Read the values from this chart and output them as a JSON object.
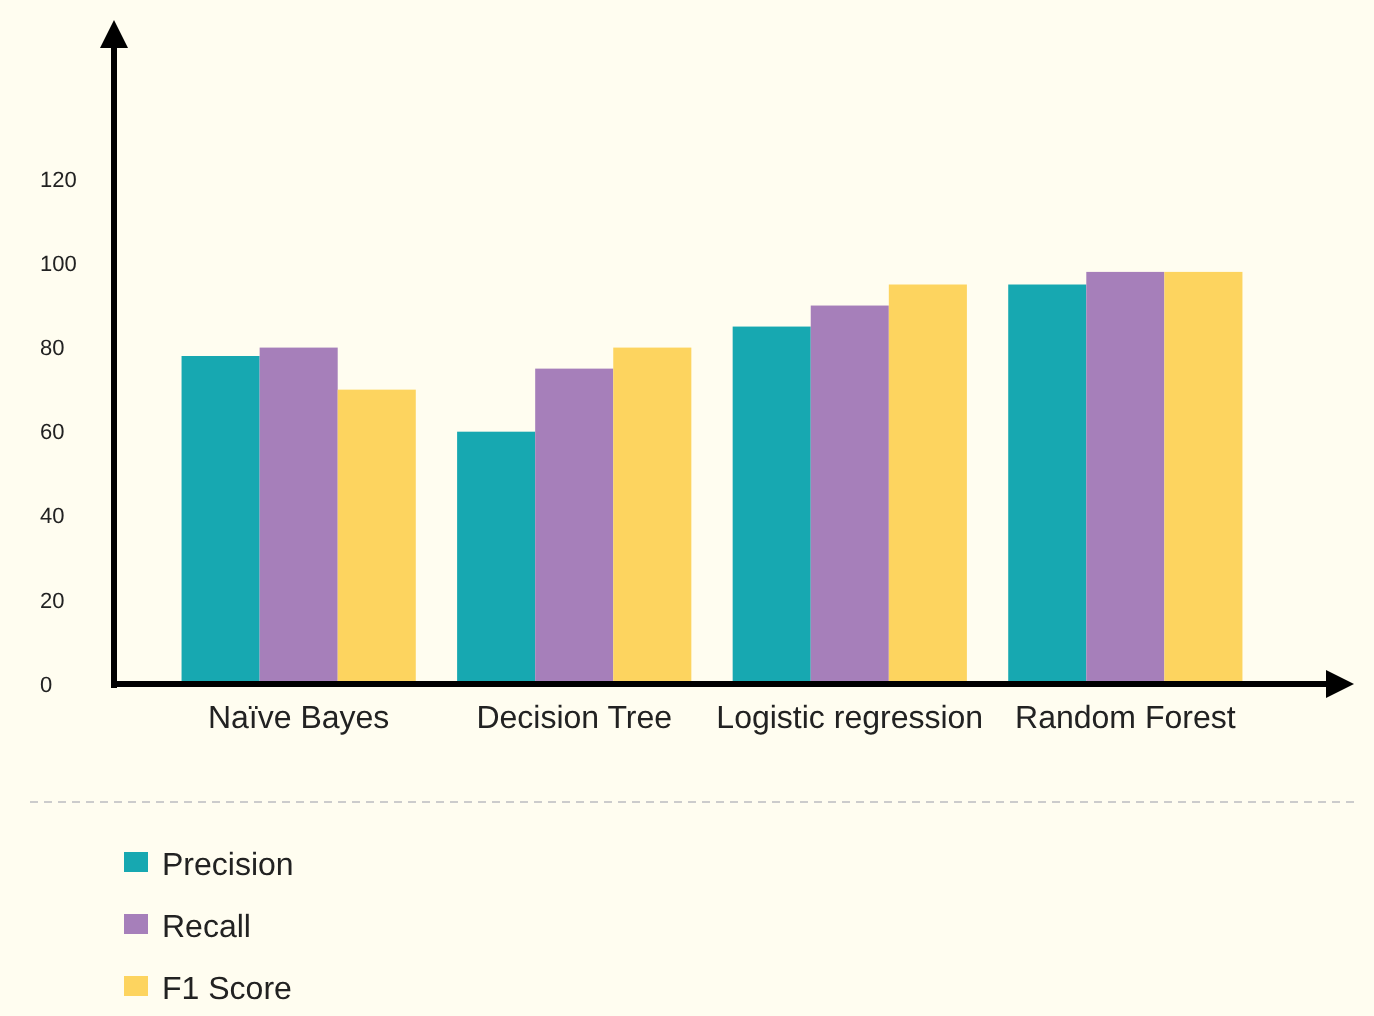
{
  "chart_data": {
    "type": "bar",
    "categories": [
      "Naïve Bayes",
      "Decision Tree",
      "Logistic regression",
      "Random Forest"
    ],
    "series": [
      {
        "name": "Precision",
        "color": "#17a8b1",
        "values": [
          78,
          60,
          85,
          95
        ]
      },
      {
        "name": "Recall",
        "color": "#a67fba",
        "values": [
          80,
          75,
          90,
          98
        ]
      },
      {
        "name": "F1 Score",
        "color": "#fdd45f",
        "values": [
          70,
          80,
          95,
          98
        ]
      }
    ],
    "ylim": [
      0,
      156
    ],
    "yticks": [
      0,
      20,
      40,
      60,
      80,
      100,
      120
    ],
    "grid": false,
    "legend": "bottom left"
  }
}
